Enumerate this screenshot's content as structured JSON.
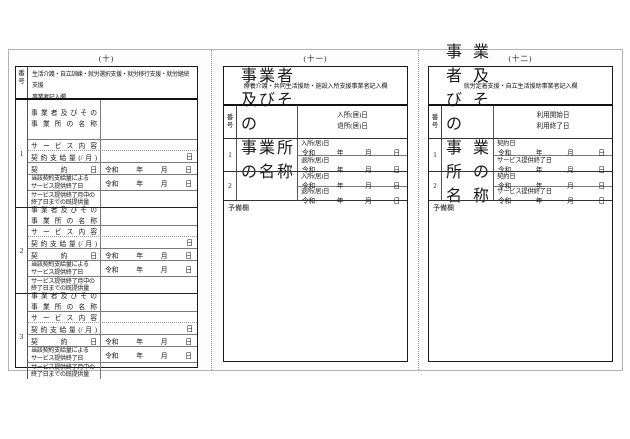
{
  "shared": {
    "number_column_header": "番号",
    "business_name_line1": "事業者及びその",
    "business_name_line2": "事業所の名称",
    "era_label": "令和",
    "year_label": "年",
    "month_label": "月",
    "day_label": "日",
    "spare_label": "予備欄"
  },
  "panel_10": {
    "title": "(十)",
    "header_line1": "生活介護・自立訓練・就労選択支援・就労移行支援・就労継続支援",
    "header_line2": "事業者記入欄",
    "labels": {
      "service": "サービス内容",
      "quantity": "契約支給量(/月)",
      "quantity_unit": "日",
      "contract_date": "契約日",
      "end_line1": "当該契約支給量による",
      "end_line2": "サービス提供終了日",
      "provided_line1": "サービス提供終了月中の",
      "provided_line2": "終了日までの既提供量"
    },
    "blocks": [
      {
        "number": "1"
      },
      {
        "number": "2"
      },
      {
        "number": "3"
      }
    ]
  },
  "panel_11": {
    "title": "(十一)",
    "header": "療養介護・共同生活援助・施設入所支援事業者記入欄",
    "date_header_line1": "入所(居)日",
    "date_header_line2": "退所(居)日",
    "entry_label_1": "入所(居)日",
    "entry_label_2": "退所(居)日",
    "rows": [
      {
        "number": "1"
      },
      {
        "number": "2"
      }
    ]
  },
  "panel_12": {
    "title": "(十二)",
    "header": "就労定着支援・自立生活援助事業者記入欄",
    "date_header_line1": "利用開始日",
    "date_header_line2": "利用終了日",
    "entry_label_1": "契約日",
    "entry_label_2": "サービス提供終了日",
    "rows": [
      {
        "number": "1"
      },
      {
        "number": "2"
      }
    ]
  }
}
